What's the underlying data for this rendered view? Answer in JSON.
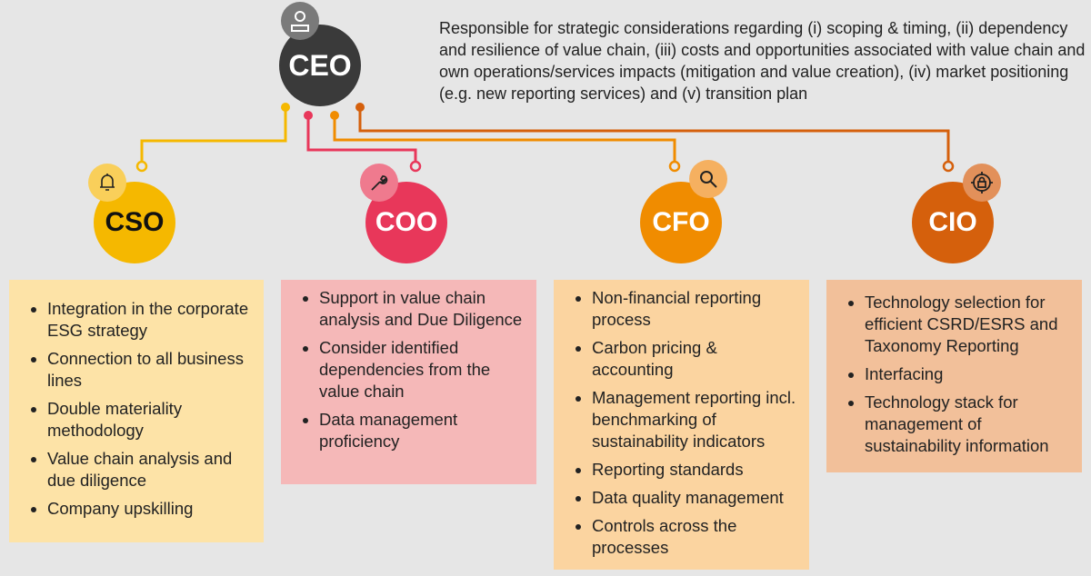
{
  "ceo": {
    "label": "CEO",
    "icon": "person-icon",
    "description": "Responsible for strategic considerations regarding (i) scoping & timing, (ii) dependency and resilience of value chain, (iii) costs and opportunities associated with value chain and own operations/services impacts (mitigation and value creation), (iv) market positioning (e.g. new reporting services) and (v) transition plan"
  },
  "roles": [
    {
      "label": "CSO",
      "icon": "bell-icon",
      "color": "#f5b800",
      "items": [
        "Integration in the corporate ESG strategy",
        "Connection to all business lines",
        "Double materiality methodology",
        "Value chain analysis and due diligence",
        "Company upskilling"
      ]
    },
    {
      "label": "COO",
      "icon": "wrench-icon",
      "color": "#e8375a",
      "items": [
        "Support in value chain analysis and Due Diligence",
        "Consider identified dependencies from the value chain",
        "Data management proficiency"
      ]
    },
    {
      "label": "CFO",
      "icon": "magnifier-icon",
      "color": "#f08c00",
      "items": [
        "Non-financial reporting process",
        "Carbon pricing & accounting",
        "Management reporting incl. benchmarking of sustainability indicators",
        "Reporting standards",
        "Data quality management",
        "Controls across the processes"
      ]
    },
    {
      "label": "CIO",
      "icon": "target-lock-icon",
      "color": "#d5600c",
      "items": [
        "Technology selection for efficient CSRD/ESRS and Taxonomy Reporting",
        "Interfacing",
        "Technology stack for management of sustainability information"
      ]
    }
  ]
}
